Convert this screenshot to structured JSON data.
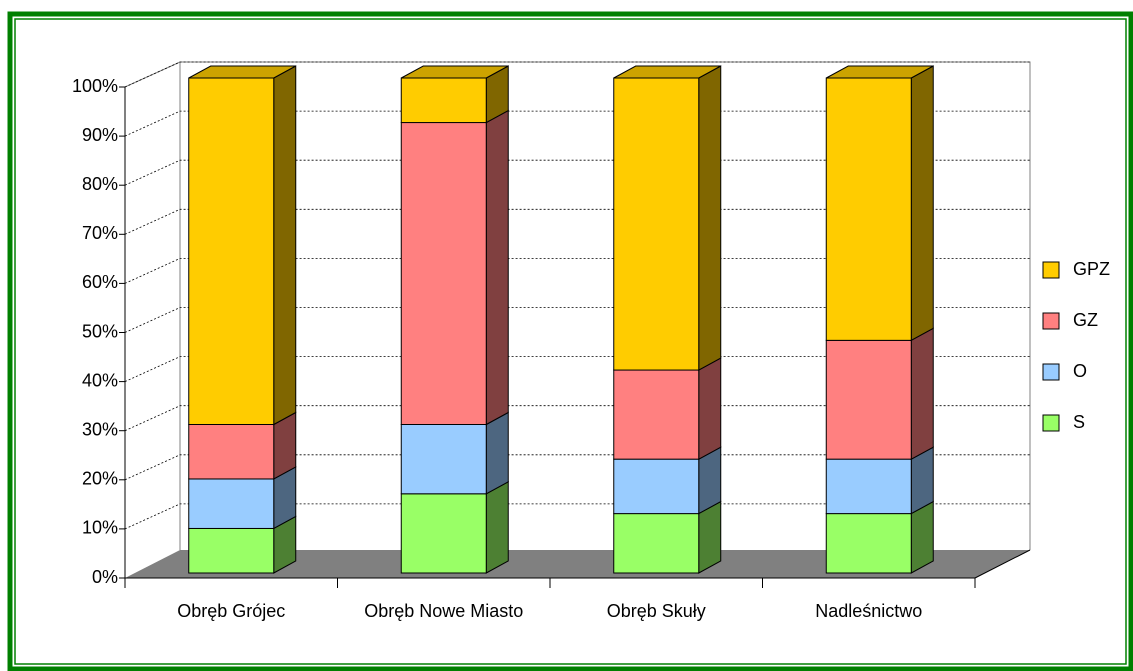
{
  "chart_data": {
    "type": "bar3d_stacked",
    "categories": [
      "Obręb Grójec",
      "Obręb Nowe Miasto",
      "Obręb Skuły",
      "Nadleśnictwo"
    ],
    "series": [
      {
        "name": "S",
        "color": "#99ff66",
        "values": [
          9,
          16,
          12,
          12
        ]
      },
      {
        "name": "O",
        "color": "#99ccff",
        "values": [
          10,
          14,
          11,
          11
        ]
      },
      {
        "name": "GZ",
        "color": "#ff8080",
        "values": [
          11,
          61,
          18,
          24
        ]
      },
      {
        "name": "GPZ",
        "color": "#ffcc00",
        "values": [
          70,
          9,
          59,
          53
        ]
      }
    ],
    "ylim": [
      0,
      100
    ],
    "yticks": [
      {
        "value": 0,
        "label": "0%"
      },
      {
        "value": 10,
        "label": "10%"
      },
      {
        "value": 20,
        "label": "20%"
      },
      {
        "value": 30,
        "label": "30%"
      },
      {
        "value": 40,
        "label": "40%"
      },
      {
        "value": 50,
        "label": "50%"
      },
      {
        "value": 60,
        "label": "60%"
      },
      {
        "value": 70,
        "label": "70%"
      },
      {
        "value": 80,
        "label": "80%"
      },
      {
        "value": 90,
        "label": "90%"
      },
      {
        "value": 100,
        "label": "100%"
      }
    ],
    "grid": true,
    "legend": "right"
  }
}
